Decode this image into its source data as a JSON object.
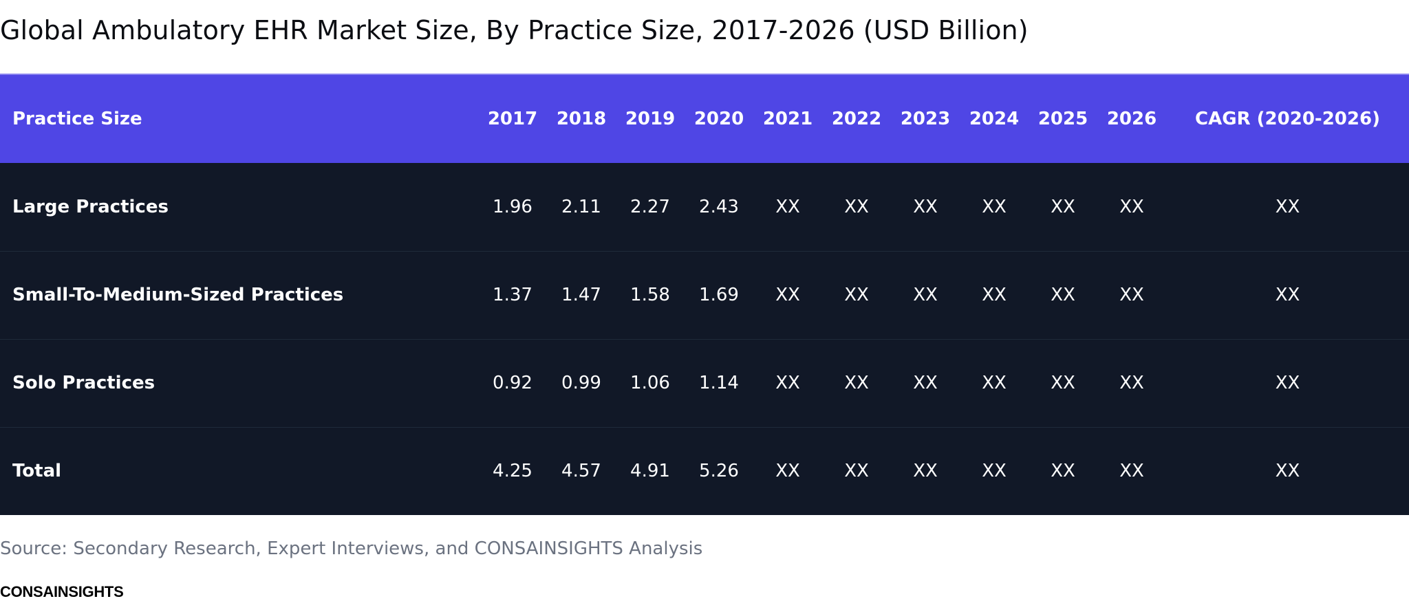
{
  "title": "Global Ambulatory EHR Market Size, By Practice Size, 2017-2026 (USD Billion)",
  "table": {
    "headers": [
      "Practice Size",
      "2017",
      "2018",
      "2019",
      "2020",
      "2021",
      "2022",
      "2023",
      "2024",
      "2025",
      "2026",
      "CAGR (2020-2026)"
    ],
    "rows": [
      [
        "Large Practices",
        "1.96",
        "2.11",
        "2.27",
        "2.43",
        "XX",
        "XX",
        "XX",
        "XX",
        "XX",
        "XX",
        "XX"
      ],
      [
        "Small-To-Medium-Sized Practices",
        "1.37",
        "1.47",
        "1.58",
        "1.69",
        "XX",
        "XX",
        "XX",
        "XX",
        "XX",
        "XX",
        "XX"
      ],
      [
        "Solo Practices",
        "0.92",
        "0.99",
        "1.06",
        "1.14",
        "XX",
        "XX",
        "XX",
        "XX",
        "XX",
        "XX",
        "XX"
      ],
      [
        "Total",
        "4.25",
        "4.57",
        "4.91",
        "5.26",
        "XX",
        "XX",
        "XX",
        "XX",
        "XX",
        "XX",
        "XX"
      ]
    ]
  },
  "source": "Source: Secondary Research, Expert Interviews, and CONSAINSIGHTS Analysis",
  "brand": "CONSAINSIGHTS",
  "colors": {
    "header_bg": "#4f46e5",
    "body_bg": "#111827",
    "source_text": "#6b7280"
  }
}
